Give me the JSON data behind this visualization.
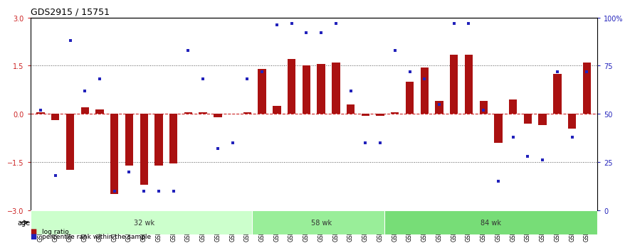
{
  "title": "GDS2915 / 15751",
  "samples": [
    "GSM97277",
    "GSM97278",
    "GSM97279",
    "GSM97280",
    "GSM97281",
    "GSM97282",
    "GSM97283",
    "GSM97284",
    "GSM97285",
    "GSM97286",
    "GSM97287",
    "GSM97288",
    "GSM97289",
    "GSM97290",
    "GSM97291",
    "GSM97292",
    "GSM97293",
    "GSM97294",
    "GSM97295",
    "GSM97296",
    "GSM97297",
    "GSM97298",
    "GSM97299",
    "GSM97300",
    "GSM97301",
    "GSM97302",
    "GSM97303",
    "GSM97304",
    "GSM97305",
    "GSM97306",
    "GSM97307",
    "GSM97308",
    "GSM97309",
    "GSM97310",
    "GSM97311",
    "GSM97312",
    "GSM97313",
    "GSM97314"
  ],
  "log_ratio": [
    0.05,
    -0.2,
    -1.75,
    0.2,
    0.15,
    -2.5,
    -1.6,
    -2.2,
    -1.6,
    -1.55,
    0.05,
    0.05,
    -0.1,
    0.0,
    0.05,
    1.4,
    0.25,
    1.7,
    1.5,
    1.55,
    1.6,
    0.3,
    -0.05,
    -0.05,
    0.05,
    1.0,
    1.45,
    0.4,
    1.85,
    1.85,
    0.4,
    -0.9,
    0.45,
    -0.3,
    -0.35,
    1.25,
    -0.45,
    1.6
  ],
  "percentile": [
    52,
    18,
    88,
    62,
    68,
    10,
    20,
    10,
    10,
    10,
    83,
    68,
    32,
    35,
    68,
    72,
    96,
    97,
    92,
    92,
    97,
    62,
    35,
    35,
    83,
    72,
    68,
    55,
    97,
    97,
    52,
    15,
    38,
    28,
    26,
    72,
    38,
    72
  ],
  "age_group_boundaries": [
    0,
    15,
    24,
    38
  ],
  "age_group_labels": [
    "32 wk",
    "58 wk",
    "84 wk"
  ],
  "age_group_colors": [
    "#ccffcc",
    "#99ee99",
    "#77dd77"
  ],
  "bar_color": "#aa1111",
  "dot_color": "#2222bb",
  "ref_line_color": "#cc2222",
  "left_tick_color": "#cc2222",
  "right_tick_color": "#2222bb",
  "dotted_line_color": "#555555",
  "ylim": [
    -3,
    3
  ],
  "right_ylim": [
    0,
    100
  ],
  "yticks_left": [
    -3,
    -1.5,
    0,
    1.5,
    3
  ],
  "right_tick_labels": [
    "0",
    "25",
    "50",
    "75",
    "100%"
  ],
  "background_color": "#ffffff",
  "title_fontsize": 9,
  "tick_fontsize": 7,
  "sample_fontsize": 5.5
}
